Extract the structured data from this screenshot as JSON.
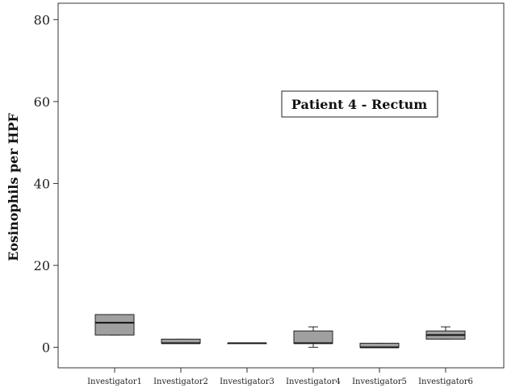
{
  "chart_data": {
    "type": "box",
    "title": "",
    "annotation": "Patient 4 - Rectum",
    "xlabel": "",
    "ylabel": "Eosinophils per HPF",
    "ylim": [
      -5,
      84
    ],
    "yticks": [
      0,
      20,
      40,
      60,
      80
    ],
    "categories": [
      "Investigator1",
      "Investigator2",
      "Investigator3",
      "Investigator4",
      "Investigator5",
      "Investigator6"
    ],
    "boxes": [
      {
        "category": "Investigator1",
        "min": 3,
        "q1": 3,
        "median": 6,
        "q3": 8,
        "max": 8
      },
      {
        "category": "Investigator2",
        "min": 1,
        "q1": 1,
        "median": 1,
        "q3": 2,
        "max": 2
      },
      {
        "category": "Investigator3",
        "min": 1,
        "q1": 1,
        "median": 1,
        "q3": 1,
        "max": 1
      },
      {
        "category": "Investigator4",
        "min": 0,
        "q1": 1,
        "median": 1,
        "q3": 4,
        "max": 5
      },
      {
        "category": "Investigator5",
        "min": 0,
        "q1": 0,
        "median": 0,
        "q3": 1,
        "max": 1
      },
      {
        "category": "Investigator6",
        "min": 2,
        "q1": 2,
        "median": 3,
        "q3": 4,
        "max": 5
      }
    ],
    "box_color": "#a0a0a0",
    "grid": false
  }
}
